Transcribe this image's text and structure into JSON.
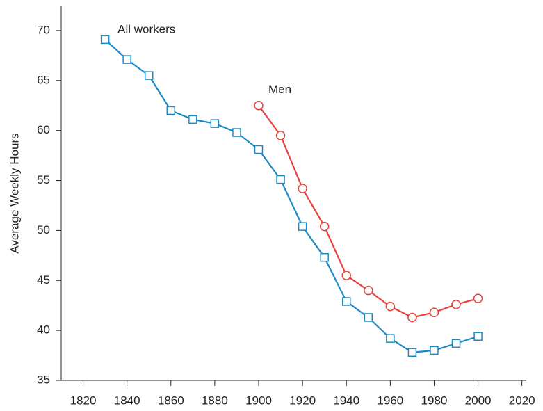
{
  "chart_data": {
    "type": "line",
    "ylabel": "Average Weekly Hours",
    "xlim": [
      1810,
      2022
    ],
    "xticks": [
      1820,
      1840,
      1860,
      1880,
      1900,
      1920,
      1940,
      1960,
      1980,
      2000,
      2020
    ],
    "ylim": [
      35,
      72.5
    ],
    "yticks": [
      35,
      40,
      45,
      50,
      55,
      60,
      65,
      70
    ],
    "series": [
      {
        "name": "All workers",
        "color": "#1a8ac6",
        "marker": "square",
        "x": [
          1830,
          1840,
          1850,
          1860,
          1870,
          1880,
          1890,
          1900,
          1910,
          1920,
          1930,
          1940,
          1950,
          1960,
          1970,
          1980,
          1990,
          2000
        ],
        "values": [
          69.1,
          67.1,
          65.5,
          62.0,
          61.1,
          60.7,
          59.8,
          58.1,
          55.1,
          50.4,
          47.3,
          42.9,
          41.3,
          39.2,
          37.8,
          38.0,
          38.7,
          39.4
        ]
      },
      {
        "name": "Men",
        "color": "#e8413c",
        "marker": "circle",
        "x": [
          1900,
          1910,
          1920,
          1930,
          1940,
          1950,
          1960,
          1970,
          1980,
          1990,
          2000
        ],
        "values": [
          62.5,
          59.5,
          54.2,
          50.4,
          45.5,
          44.0,
          42.4,
          41.3,
          41.8,
          42.6,
          43.2
        ]
      }
    ]
  }
}
